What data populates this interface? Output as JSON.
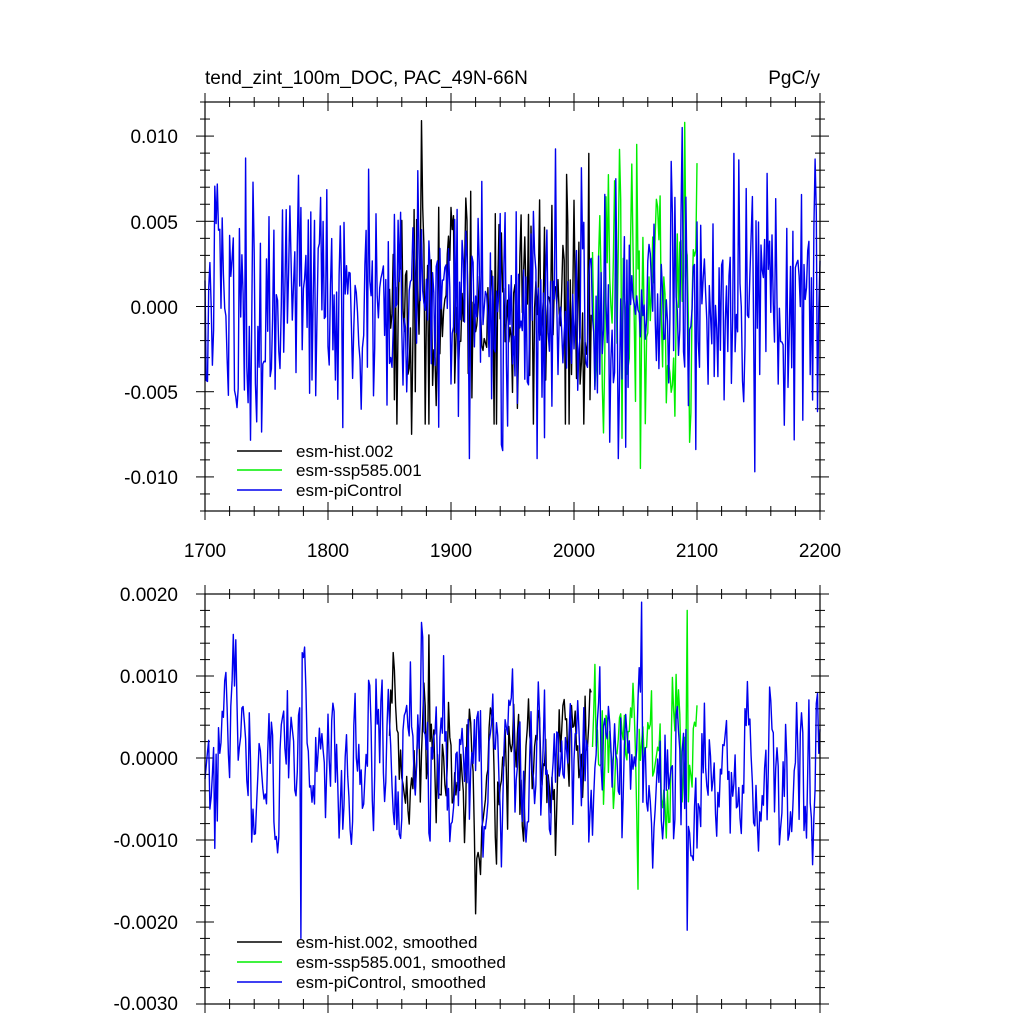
{
  "chart_data": [
    {
      "type": "line",
      "title": "tend_zint_100m_DOC, PAC_49N-66N",
      "units": "PgC/y",
      "xlim": [
        1700,
        2200
      ],
      "ylim": [
        -0.012,
        0.012
      ],
      "xticks": [
        "1700",
        "1800",
        "1900",
        "2000",
        "2100",
        "2200"
      ],
      "yticks": [
        "0.010",
        "0.005",
        "0.000",
        "-0.005",
        "-0.010"
      ],
      "legend_position": "bottom-left",
      "series": [
        {
          "name": "esm-hist.002",
          "color": "#000000",
          "x_start": 1850,
          "x_end": 2014,
          "approx_range": [
            -0.0075,
            0.011
          ],
          "peaks": [
            {
              "x": 1876,
              "y": 0.0109
            }
          ],
          "troughs": [
            {
              "x": 1868,
              "y": -0.0075
            }
          ]
        },
        {
          "name": "esm-ssp585.001",
          "color": "#00ee00",
          "x_start": 2015,
          "x_end": 2100,
          "approx_range": [
            -0.0095,
            0.0108
          ],
          "peaks": [
            {
              "x": 2090,
              "y": 0.0108
            }
          ],
          "troughs": [
            {
              "x": 2054,
              "y": -0.0095
            }
          ]
        },
        {
          "name": "esm-piControl",
          "color": "#0000ee",
          "x_start": 1700,
          "x_end": 2200,
          "approx_range": [
            -0.0097,
            0.0105
          ],
          "peaks": [
            {
              "x": 1776,
              "y": 0.0077
            },
            {
              "x": 2088,
              "y": 0.0105
            }
          ],
          "troughs": [
            {
              "x": 2147,
              "y": -0.0097
            }
          ]
        }
      ]
    },
    {
      "type": "line",
      "title": "",
      "units": "",
      "xlim": [
        1700,
        2200
      ],
      "ylim": [
        -0.003,
        0.002
      ],
      "xticks": [],
      "yticks": [
        "0.0020",
        "0.0010",
        "0.0000",
        "-0.0010",
        "-0.0020",
        "-0.0030"
      ],
      "legend_position": "bottom-left",
      "series": [
        {
          "name": "esm-hist.002, smoothed",
          "color": "#000000",
          "x_start": 1850,
          "x_end": 2014,
          "approx_range": [
            -0.0019,
            0.0015
          ],
          "peaks": [
            {
              "x": 1882,
              "y": 0.0015
            }
          ],
          "troughs": [
            {
              "x": 1920,
              "y": -0.0019
            }
          ]
        },
        {
          "name": "esm-ssp585.001, smoothed",
          "color": "#00ee00",
          "x_start": 2015,
          "x_end": 2100,
          "approx_range": [
            -0.0016,
            0.0018
          ],
          "peaks": [
            {
              "x": 2092,
              "y": 0.0018
            }
          ],
          "troughs": [
            {
              "x": 2052,
              "y": -0.0016
            }
          ]
        },
        {
          "name": "esm-piControl, smoothed",
          "color": "#0000ee",
          "x_start": 1700,
          "x_end": 2200,
          "approx_range": [
            -0.0022,
            0.0019
          ],
          "peaks": [
            {
              "x": 2055,
              "y": 0.0019
            }
          ],
          "troughs": [
            {
              "x": 1778,
              "y": -0.0022
            },
            {
              "x": 2092,
              "y": -0.0021
            }
          ]
        }
      ]
    }
  ]
}
